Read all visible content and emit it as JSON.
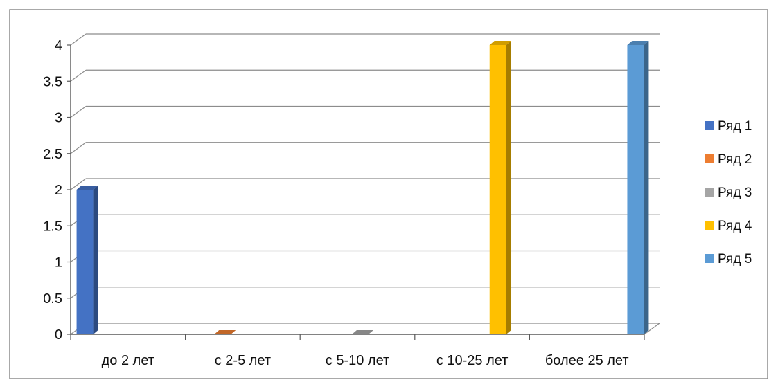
{
  "chart_data": {
    "type": "bar",
    "style": "3d-clustered-column",
    "categories": [
      "до 2 лет",
      "с 2-5 лет",
      "с 5-10 лет",
      "с 10-25 лет",
      "более 25 лет"
    ],
    "series": [
      {
        "name": "Ряд 1",
        "color": "#4472C4",
        "values": [
          2,
          0,
          0,
          0,
          0
        ]
      },
      {
        "name": "Ряд 2",
        "color": "#ED7D31",
        "values": [
          0,
          0,
          0,
          0,
          0
        ]
      },
      {
        "name": "Ряд 3",
        "color": "#A5A5A5",
        "values": [
          0,
          0,
          0,
          0,
          0
        ]
      },
      {
        "name": "Ряд 4",
        "color": "#FFC000",
        "values": [
          0,
          0,
          0,
          4,
          0
        ]
      },
      {
        "name": "Ряд 5",
        "color": "#5B9BD5",
        "values": [
          0,
          0,
          0,
          0,
          4
        ]
      }
    ],
    "y_ticks": [
      "0",
      "0.5",
      "1",
      "1.5",
      "2",
      "2.5",
      "3",
      "3.5",
      "4"
    ],
    "ylim": [
      0,
      4
    ],
    "grid": true,
    "legend": "right"
  }
}
